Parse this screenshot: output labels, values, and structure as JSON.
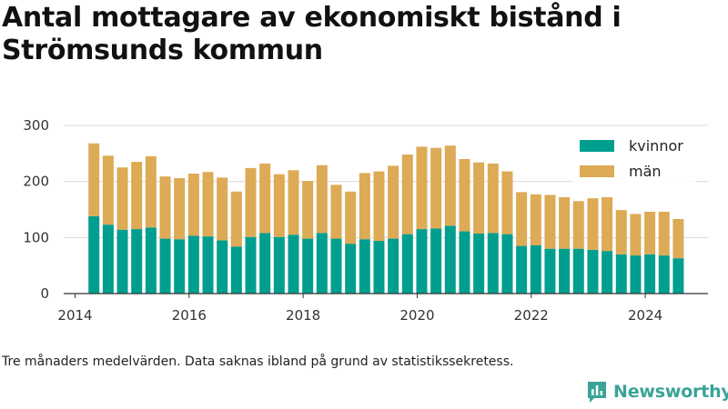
{
  "title": "Antal mottagare av ekonomiskt bistånd i Strömsunds kommun",
  "caption": "Tre månaders medelvärden. Data saknas ibland på grund av statistikssekretess.",
  "brand": {
    "name": "Newsworthy",
    "color": "#3aa398",
    "icon": "newsworthy-logo-icon"
  },
  "colors": {
    "kvinnor": "#009e8e",
    "man": "#ddaa55",
    "grid": "#d8d8d8",
    "axis": "#333333"
  },
  "chart_data": {
    "type": "bar",
    "stacked": true,
    "title": "Antal mottagare av ekonomiskt bistånd i Strömsunds kommun",
    "xlabel": "",
    "ylabel": "",
    "ylim": [
      0,
      300
    ],
    "xlim": [
      2013.8,
      2025.1
    ],
    "yticks": [
      0,
      100,
      200,
      300
    ],
    "xticks": [
      2014,
      2016,
      2018,
      2020,
      2022,
      2024
    ],
    "grid": true,
    "legend_position": "top-right",
    "x": [
      2014.33,
      2014.58,
      2014.83,
      2015.08,
      2015.33,
      2015.58,
      2015.83,
      2016.08,
      2016.33,
      2016.58,
      2016.83,
      2017.08,
      2017.33,
      2017.58,
      2017.83,
      2018.08,
      2018.33,
      2018.58,
      2018.83,
      2019.08,
      2019.33,
      2019.58,
      2019.83,
      2020.08,
      2020.33,
      2020.58,
      2020.83,
      2021.08,
      2021.33,
      2021.58,
      2021.83,
      2022.08,
      2022.33,
      2022.58,
      2022.83,
      2023.08,
      2023.33,
      2023.58,
      2023.83,
      2024.08,
      2024.33,
      2024.58
    ],
    "series": [
      {
        "name": "kvinnor",
        "values": [
          138,
          123,
          114,
          115,
          118,
          98,
          97,
          103,
          102,
          95,
          84,
          101,
          108,
          101,
          105,
          98,
          108,
          98,
          89,
          97,
          94,
          98,
          106,
          115,
          116,
          121,
          111,
          107,
          108,
          106,
          85,
          86,
          80,
          80,
          80,
          78,
          76,
          70,
          68,
          70,
          68,
          63
        ]
      },
      {
        "name": "män",
        "values": [
          130,
          123,
          111,
          120,
          127,
          111,
          109,
          111,
          115,
          112,
          98,
          123,
          124,
          112,
          115,
          103,
          121,
          96,
          93,
          118,
          124,
          130,
          142,
          147,
          144,
          143,
          129,
          127,
          124,
          112,
          96,
          91,
          96,
          92,
          85,
          92,
          96,
          79,
          74,
          76,
          78,
          70
        ]
      }
    ]
  }
}
